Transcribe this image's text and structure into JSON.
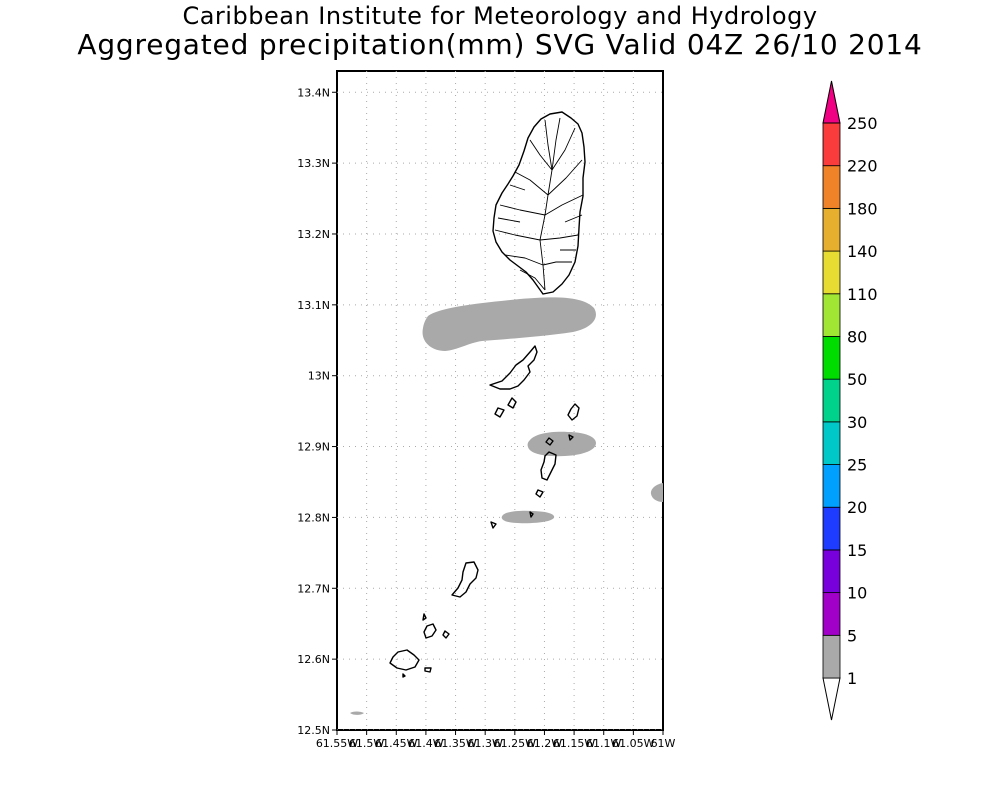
{
  "header": {
    "institute": "Caribbean Institute for Meteorology and Hydrology",
    "product": "Aggregated precipitation(mm) SVG Valid 04Z 26/10 2014"
  },
  "map": {
    "lat_ticks": [
      "12.5N",
      "12.6N",
      "12.7N",
      "12.8N",
      "12.9N",
      "13N",
      "13.1N",
      "13.2N",
      "13.3N",
      "13.4N"
    ],
    "lon_ticks": [
      "61.55W",
      "61.5W",
      "61.45W",
      "61.4W",
      "61.35W",
      "61.3W",
      "61.25W",
      "61.2W",
      "61.15W",
      "61.1W",
      "61.05W",
      "61W"
    ],
    "lon_range": [
      -61.55,
      -61.0
    ],
    "lat_range": [
      12.5,
      13.43
    ],
    "grid": true,
    "precipitation_areas": [
      {
        "name": "band north of Saint Vincent",
        "bin": "1-5"
      },
      {
        "name": "patch near Canouan",
        "bin": "1-5"
      },
      {
        "name": "patch near Mayreau",
        "bin": "1-5"
      },
      {
        "name": "patch at east edge",
        "bin": "1-5"
      },
      {
        "name": "patch near Petite Martinique",
        "bin": "1-5"
      }
    ]
  },
  "colorbar": {
    "labels": [
      "1",
      "5",
      "10",
      "15",
      "20",
      "25",
      "30",
      "50",
      "80",
      "110",
      "140",
      "180",
      "220",
      "250"
    ],
    "colors": [
      "#a9a9a9",
      "#a000c8",
      "#7800dc",
      "#1e3cff",
      "#00a0ff",
      "#00c8c8",
      "#00d28c",
      "#00dc00",
      "#a0e632",
      "#e6dc32",
      "#e6af2d",
      "#f08228",
      "#fa3c3c",
      "#f00082"
    ]
  }
}
